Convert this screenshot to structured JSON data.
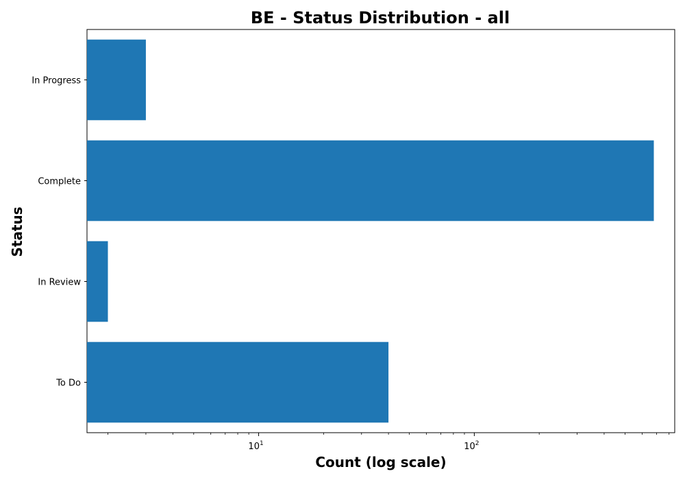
{
  "chart_data": {
    "type": "bar",
    "orientation": "horizontal",
    "title": "BE - Status Distribution - all",
    "xlabel": "Count (log scale)",
    "ylabel": "Status",
    "x_scale": "log",
    "xlim": [
      1.6,
      850
    ],
    "categories": [
      "To Do",
      "In Review",
      "Complete",
      "In Progress"
    ],
    "values": [
      40,
      2,
      680,
      3
    ],
    "x_ticks": [
      {
        "value": 10,
        "base": "10",
        "exponent": "1"
      },
      {
        "value": 100,
        "base": "10",
        "exponent": "2"
      }
    ],
    "grid": false,
    "legend": "none",
    "bar_color": "#1f77b4"
  }
}
